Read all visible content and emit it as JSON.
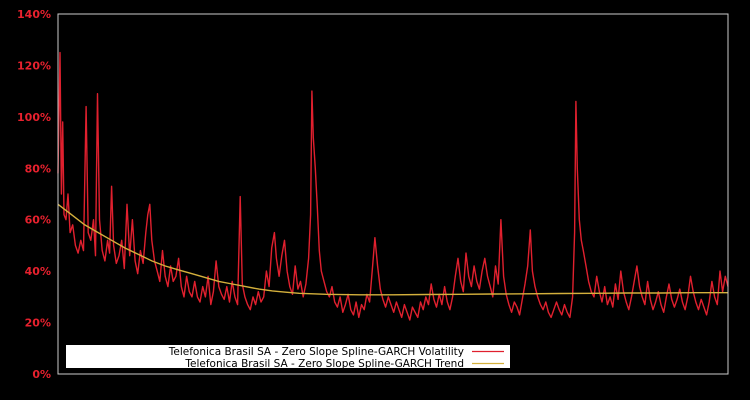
{
  "chart_data": {
    "type": "line",
    "title": "",
    "xlabel": "",
    "ylabel": "",
    "ylim": [
      0,
      140
    ],
    "y_unit": "%",
    "y_ticks": [
      "0%",
      "20%",
      "40%",
      "60%",
      "80%",
      "100%",
      "120%",
      "140%"
    ],
    "grid": false,
    "legend_position": "lower left (inside plot)",
    "background": "#000000",
    "axis_color": "#cccccc",
    "tick_label_color": "#e8212e",
    "x_normalized": true,
    "series": [
      {
        "name": "Telefonica Brasil SA - Zero Slope Spline-GARCH Volatility",
        "color": "#e0202e",
        "points": [
          [
            0.0,
            78
          ],
          [
            0.003,
            125
          ],
          [
            0.005,
            70
          ],
          [
            0.007,
            98
          ],
          [
            0.009,
            62
          ],
          [
            0.012,
            60
          ],
          [
            0.015,
            70
          ],
          [
            0.018,
            55
          ],
          [
            0.022,
            58
          ],
          [
            0.026,
            50
          ],
          [
            0.03,
            47
          ],
          [
            0.034,
            52
          ],
          [
            0.038,
            48
          ],
          [
            0.042,
            104
          ],
          [
            0.045,
            55
          ],
          [
            0.049,
            52
          ],
          [
            0.053,
            60
          ],
          [
            0.056,
            46
          ],
          [
            0.059,
            109
          ],
          [
            0.062,
            60
          ],
          [
            0.066,
            48
          ],
          [
            0.07,
            44
          ],
          [
            0.074,
            52
          ],
          [
            0.077,
            47
          ],
          [
            0.08,
            73
          ],
          [
            0.083,
            50
          ],
          [
            0.087,
            43
          ],
          [
            0.091,
            46
          ],
          [
            0.095,
            52
          ],
          [
            0.099,
            41
          ],
          [
            0.103,
            66
          ],
          [
            0.107,
            46
          ],
          [
            0.111,
            60
          ],
          [
            0.115,
            44
          ],
          [
            0.119,
            39
          ],
          [
            0.123,
            48
          ],
          [
            0.127,
            43
          ],
          [
            0.131,
            55
          ],
          [
            0.134,
            62
          ],
          [
            0.137,
            66
          ],
          [
            0.14,
            52
          ],
          [
            0.144,
            44
          ],
          [
            0.148,
            40
          ],
          [
            0.152,
            36
          ],
          [
            0.156,
            48
          ],
          [
            0.16,
            38
          ],
          [
            0.164,
            34
          ],
          [
            0.168,
            42
          ],
          [
            0.172,
            36
          ],
          [
            0.176,
            38
          ],
          [
            0.18,
            45
          ],
          [
            0.184,
            34
          ],
          [
            0.188,
            30
          ],
          [
            0.192,
            38
          ],
          [
            0.196,
            32
          ],
          [
            0.2,
            30
          ],
          [
            0.204,
            36
          ],
          [
            0.208,
            30
          ],
          [
            0.212,
            28
          ],
          [
            0.216,
            34
          ],
          [
            0.22,
            30
          ],
          [
            0.224,
            38
          ],
          [
            0.228,
            27
          ],
          [
            0.232,
            32
          ],
          [
            0.236,
            44
          ],
          [
            0.24,
            34
          ],
          [
            0.244,
            31
          ],
          [
            0.248,
            29
          ],
          [
            0.252,
            34
          ],
          [
            0.256,
            28
          ],
          [
            0.26,
            36
          ],
          [
            0.264,
            30
          ],
          [
            0.268,
            27
          ],
          [
            0.272,
            69
          ],
          [
            0.275,
            35
          ],
          [
            0.279,
            30
          ],
          [
            0.283,
            27
          ],
          [
            0.287,
            25
          ],
          [
            0.291,
            30
          ],
          [
            0.295,
            27
          ],
          [
            0.299,
            32
          ],
          [
            0.303,
            28
          ],
          [
            0.307,
            30
          ],
          [
            0.311,
            40
          ],
          [
            0.315,
            34
          ],
          [
            0.319,
            49
          ],
          [
            0.323,
            55
          ],
          [
            0.326,
            45
          ],
          [
            0.33,
            38
          ],
          [
            0.334,
            46
          ],
          [
            0.338,
            52
          ],
          [
            0.342,
            40
          ],
          [
            0.346,
            34
          ],
          [
            0.35,
            31
          ],
          [
            0.354,
            42
          ],
          [
            0.358,
            33
          ],
          [
            0.362,
            36
          ],
          [
            0.366,
            30
          ],
          [
            0.37,
            35
          ],
          [
            0.374,
            45
          ],
          [
            0.377,
            62
          ],
          [
            0.379,
            110
          ],
          [
            0.381,
            92
          ],
          [
            0.384,
            80
          ],
          [
            0.387,
            65
          ],
          [
            0.39,
            48
          ],
          [
            0.393,
            40
          ],
          [
            0.397,
            36
          ],
          [
            0.401,
            32
          ],
          [
            0.405,
            30
          ],
          [
            0.409,
            34
          ],
          [
            0.413,
            28
          ],
          [
            0.417,
            26
          ],
          [
            0.421,
            30
          ],
          [
            0.425,
            24
          ],
          [
            0.429,
            27
          ],
          [
            0.433,
            31
          ],
          [
            0.437,
            25
          ],
          [
            0.441,
            23
          ],
          [
            0.445,
            28
          ],
          [
            0.449,
            22
          ],
          [
            0.453,
            27
          ],
          [
            0.457,
            25
          ],
          [
            0.461,
            31
          ],
          [
            0.465,
            28
          ],
          [
            0.469,
            40
          ],
          [
            0.473,
            53
          ],
          [
            0.477,
            42
          ],
          [
            0.481,
            33
          ],
          [
            0.485,
            29
          ],
          [
            0.489,
            26
          ],
          [
            0.493,
            30
          ],
          [
            0.497,
            27
          ],
          [
            0.501,
            24
          ],
          [
            0.505,
            28
          ],
          [
            0.509,
            25
          ],
          [
            0.513,
            22
          ],
          [
            0.517,
            27
          ],
          [
            0.521,
            24
          ],
          [
            0.525,
            21
          ],
          [
            0.529,
            26
          ],
          [
            0.533,
            24
          ],
          [
            0.537,
            22
          ],
          [
            0.541,
            28
          ],
          [
            0.545,
            25
          ],
          [
            0.549,
            30
          ],
          [
            0.553,
            27
          ],
          [
            0.557,
            35
          ],
          [
            0.561,
            29
          ],
          [
            0.565,
            26
          ],
          [
            0.569,
            31
          ],
          [
            0.573,
            27
          ],
          [
            0.577,
            34
          ],
          [
            0.581,
            28
          ],
          [
            0.585,
            25
          ],
          [
            0.589,
            30
          ],
          [
            0.593,
            38
          ],
          [
            0.597,
            45
          ],
          [
            0.601,
            36
          ],
          [
            0.605,
            32
          ],
          [
            0.609,
            47
          ],
          [
            0.613,
            38
          ],
          [
            0.617,
            34
          ],
          [
            0.621,
            42
          ],
          [
            0.625,
            36
          ],
          [
            0.629,
            33
          ],
          [
            0.633,
            40
          ],
          [
            0.637,
            45
          ],
          [
            0.641,
            38
          ],
          [
            0.645,
            34
          ],
          [
            0.649,
            30
          ],
          [
            0.653,
            42
          ],
          [
            0.657,
            35
          ],
          [
            0.661,
            60
          ],
          [
            0.665,
            38
          ],
          [
            0.669,
            31
          ],
          [
            0.673,
            27
          ],
          [
            0.677,
            24
          ],
          [
            0.681,
            28
          ],
          [
            0.685,
            26
          ],
          [
            0.689,
            23
          ],
          [
            0.693,
            29
          ],
          [
            0.697,
            35
          ],
          [
            0.701,
            42
          ],
          [
            0.705,
            56
          ],
          [
            0.708,
            40
          ],
          [
            0.712,
            34
          ],
          [
            0.716,
            30
          ],
          [
            0.72,
            27
          ],
          [
            0.724,
            25
          ],
          [
            0.728,
            28
          ],
          [
            0.732,
            24
          ],
          [
            0.736,
            22
          ],
          [
            0.74,
            25
          ],
          [
            0.744,
            28
          ],
          [
            0.748,
            25
          ],
          [
            0.752,
            23
          ],
          [
            0.756,
            27
          ],
          [
            0.76,
            24
          ],
          [
            0.764,
            22
          ],
          [
            0.768,
            30
          ],
          [
            0.771,
            55
          ],
          [
            0.773,
            106
          ],
          [
            0.775,
            80
          ],
          [
            0.778,
            60
          ],
          [
            0.781,
            52
          ],
          [
            0.784,
            48
          ],
          [
            0.788,
            42
          ],
          [
            0.792,
            36
          ],
          [
            0.796,
            32
          ],
          [
            0.8,
            30
          ],
          [
            0.804,
            38
          ],
          [
            0.808,
            32
          ],
          [
            0.812,
            28
          ],
          [
            0.816,
            34
          ],
          [
            0.82,
            27
          ],
          [
            0.824,
            30
          ],
          [
            0.828,
            26
          ],
          [
            0.832,
            35
          ],
          [
            0.836,
            29
          ],
          [
            0.84,
            40
          ],
          [
            0.844,
            32
          ],
          [
            0.848,
            28
          ],
          [
            0.852,
            25
          ],
          [
            0.856,
            30
          ],
          [
            0.86,
            36
          ],
          [
            0.864,
            42
          ],
          [
            0.868,
            34
          ],
          [
            0.872,
            30
          ],
          [
            0.876,
            27
          ],
          [
            0.88,
            36
          ],
          [
            0.884,
            29
          ],
          [
            0.888,
            25
          ],
          [
            0.892,
            28
          ],
          [
            0.896,
            32
          ],
          [
            0.9,
            27
          ],
          [
            0.904,
            24
          ],
          [
            0.908,
            30
          ],
          [
            0.912,
            35
          ],
          [
            0.916,
            29
          ],
          [
            0.92,
            26
          ],
          [
            0.924,
            29
          ],
          [
            0.928,
            33
          ],
          [
            0.932,
            28
          ],
          [
            0.936,
            25
          ],
          [
            0.94,
            30
          ],
          [
            0.944,
            38
          ],
          [
            0.948,
            32
          ],
          [
            0.952,
            28
          ],
          [
            0.956,
            25
          ],
          [
            0.96,
            29
          ],
          [
            0.964,
            26
          ],
          [
            0.968,
            23
          ],
          [
            0.972,
            28
          ],
          [
            0.976,
            36
          ],
          [
            0.98,
            30
          ],
          [
            0.984,
            27
          ],
          [
            0.988,
            40
          ],
          [
            0.992,
            32
          ],
          [
            0.996,
            38
          ],
          [
            1.0,
            34
          ]
        ]
      },
      {
        "name": "Telefonica Brasil SA - Zero Slope Spline-GARCH Trend",
        "color": "#d4b03c",
        "points": [
          [
            0.0,
            66
          ],
          [
            0.02,
            62
          ],
          [
            0.04,
            58
          ],
          [
            0.06,
            55
          ],
          [
            0.08,
            52
          ],
          [
            0.1,
            49
          ],
          [
            0.12,
            46.5
          ],
          [
            0.14,
            44
          ],
          [
            0.16,
            42
          ],
          [
            0.18,
            40.5
          ],
          [
            0.2,
            39
          ],
          [
            0.22,
            37.5
          ],
          [
            0.24,
            36
          ],
          [
            0.26,
            35
          ],
          [
            0.28,
            34
          ],
          [
            0.3,
            33
          ],
          [
            0.32,
            32.3
          ],
          [
            0.34,
            31.8
          ],
          [
            0.36,
            31.4
          ],
          [
            0.38,
            31.2
          ],
          [
            0.4,
            31.0
          ],
          [
            0.45,
            30.8
          ],
          [
            0.5,
            30.8
          ],
          [
            0.55,
            30.9
          ],
          [
            0.6,
            31.0
          ],
          [
            0.65,
            31.1
          ],
          [
            0.7,
            31.2
          ],
          [
            0.75,
            31.3
          ],
          [
            0.8,
            31.4
          ],
          [
            0.85,
            31.5
          ],
          [
            0.9,
            31.5
          ],
          [
            0.95,
            31.6
          ],
          [
            1.0,
            31.6
          ]
        ]
      }
    ]
  },
  "legend": {
    "items": [
      {
        "label": "Telefonica Brasil SA - Zero Slope Spline-GARCH Volatility",
        "color": "#e0202e"
      },
      {
        "label": "Telefonica Brasil SA - Zero Slope Spline-GARCH Trend",
        "color": "#d4b03c"
      }
    ]
  }
}
